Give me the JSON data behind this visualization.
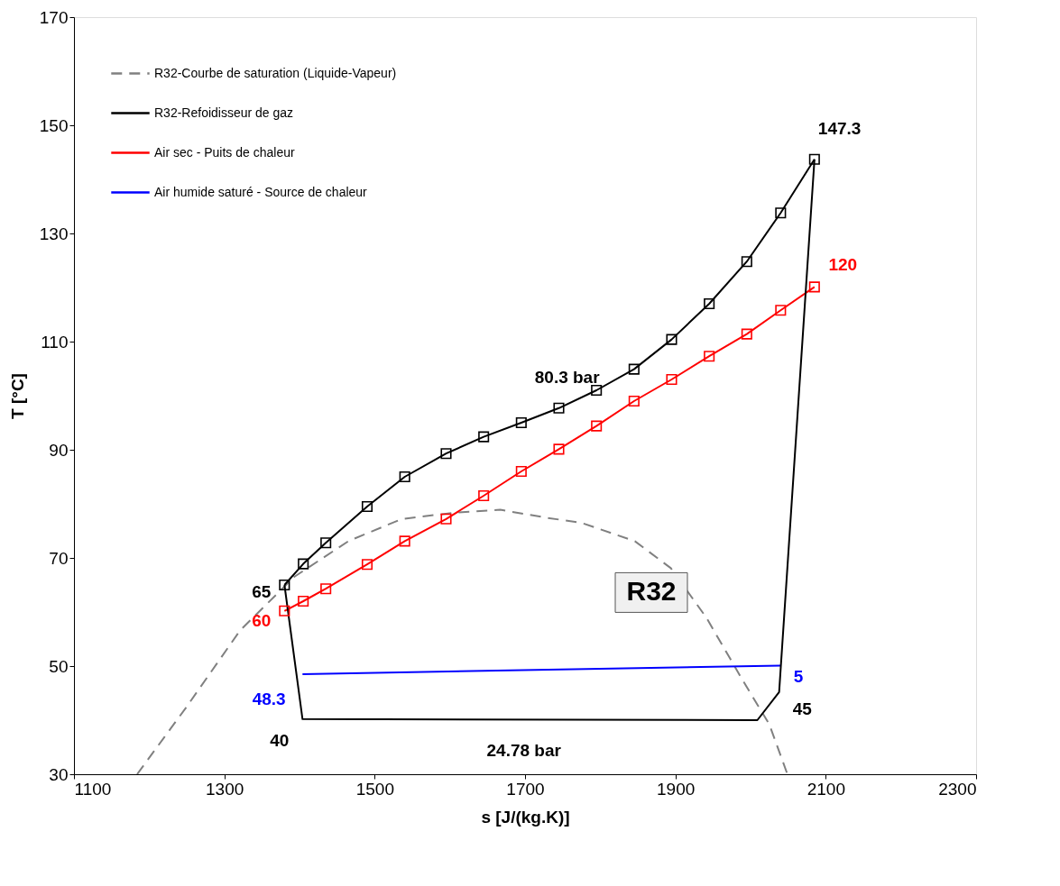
{
  "chart_data": {
    "type": "line",
    "xlabel": "s [J/(kg.K)]",
    "ylabel": "T [°C]",
    "xlim": [
      1100,
      2300
    ],
    "xticks": [
      1100,
      1300,
      1500,
      1700,
      1900,
      2100,
      2300
    ],
    "ylim": [
      30,
      170
    ],
    "yticks": [
      30,
      50,
      70,
      90,
      110,
      130,
      150,
      170
    ],
    "grid": false,
    "legend": "top left",
    "series": [
      {
        "name": "R32-Courbe de saturation (Liquide-Vapeur)",
        "color": "#808080",
        "line_style": "dashed",
        "marker": "none",
        "x": [
          1184,
          1250,
          1321,
          1393,
          1465,
          1536,
          1608,
          1667,
          1730,
          1775,
          1846,
          1894,
          1941,
          1989,
          2025,
          2049
        ],
        "values": [
          30.0,
          42.5,
          56.6,
          66.5,
          73.1,
          77.2,
          78.4,
          78.9,
          77.4,
          76.5,
          73.1,
          68.1,
          59.0,
          47.5,
          39.2,
          30.0
        ]
      },
      {
        "name": "R32-Refoidisseur de gaz",
        "color": "#000000",
        "line_style": "solid",
        "marker": "square",
        "x": [
          1380,
          1405,
          1435,
          1490,
          1540,
          1595,
          1645,
          1695,
          1745,
          1795,
          1845,
          1895,
          1945,
          1995,
          2040,
          2085
        ],
        "values": [
          65.0,
          68.9,
          72.8,
          79.5,
          85.0,
          89.3,
          92.4,
          95.0,
          97.7,
          101.0,
          104.9,
          110.4,
          117.0,
          124.8,
          133.8,
          143.7
        ]
      },
      {
        "name": "Air sec - Puits de chaleur",
        "color": "#ff0000",
        "line_style": "solid",
        "marker": "square",
        "x": [
          1380,
          1405,
          1435,
          1490,
          1540,
          1595,
          1645,
          1695,
          1745,
          1795,
          1845,
          1895,
          1945,
          1995,
          2040,
          2085
        ],
        "values": [
          60.2,
          62.0,
          64.3,
          68.8,
          73.1,
          77.2,
          81.5,
          86.0,
          90.1,
          94.4,
          99.0,
          103.0,
          107.3,
          111.4,
          115.8,
          120.1
        ]
      },
      {
        "name": "Air humide saturé - Source de chaleur",
        "color": "#0000ff",
        "line_style": "solid",
        "marker": "none",
        "x": [
          1404,
          2040
        ],
        "values": [
          48.5,
          50.1
        ]
      },
      {
        "color": "#000000",
        "line_style": "solid",
        "marker": "none",
        "x": [
          2085,
          2038,
          2009,
          1404,
          1380
        ],
        "values": [
          143.7,
          45.2,
          40.0,
          40.2,
          65.0
        ]
      }
    ],
    "annotations": [
      {
        "text": "147.3",
        "x": 2085,
        "y": 143.7
      },
      {
        "text": "120",
        "x": 2085,
        "y": 120.1
      },
      {
        "text": "80.3 bar",
        "x": 1745,
        "y": 97.7
      },
      {
        "text": "65",
        "x": 1380,
        "y": 65.0
      },
      {
        "text": "60",
        "x": 1380,
        "y": 60.2
      },
      {
        "text": "48.3",
        "x": 1404,
        "y": 48.5
      },
      {
        "text": "5",
        "x": 2040,
        "y": 50.1
      },
      {
        "text": "45",
        "x": 2038,
        "y": 45.2
      },
      {
        "text": "40",
        "x": 1404,
        "y": 40.2
      },
      {
        "text": "24.78 bar",
        "x": 1700,
        "y": 40.0
      },
      "R32"
    ]
  }
}
